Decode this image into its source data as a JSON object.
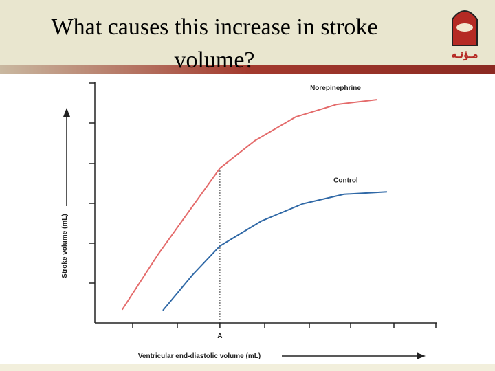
{
  "header": {
    "title": "What causes this increase in stroke volume?",
    "logo_text": "مـؤتـه"
  },
  "chart_data": {
    "type": "line",
    "x_label": "Ventricular end-diastolic volume (mL)",
    "y_label": "Stroke volume (mL)",
    "xlim": [
      0,
      10
    ],
    "ylim": [
      0,
      6
    ],
    "marker": {
      "label": "A",
      "x": 3.66
    },
    "series": [
      {
        "name": "Norepinephrine",
        "color": "#e46b6b",
        "x": [
          0.8,
          1.85,
          2.86,
          3.66,
          4.67,
          5.88,
          7.08,
          8.25
        ],
        "values": [
          0.33,
          1.71,
          2.91,
          3.86,
          4.54,
          5.14,
          5.45,
          5.57
        ]
      },
      {
        "name": "Control",
        "color": "#2f68a6",
        "x": [
          1.99,
          2.86,
          3.66,
          4.87,
          6.08,
          7.29,
          8.55
        ],
        "values": [
          0.31,
          1.2,
          1.92,
          2.54,
          2.97,
          3.21,
          3.27
        ]
      }
    ]
  }
}
